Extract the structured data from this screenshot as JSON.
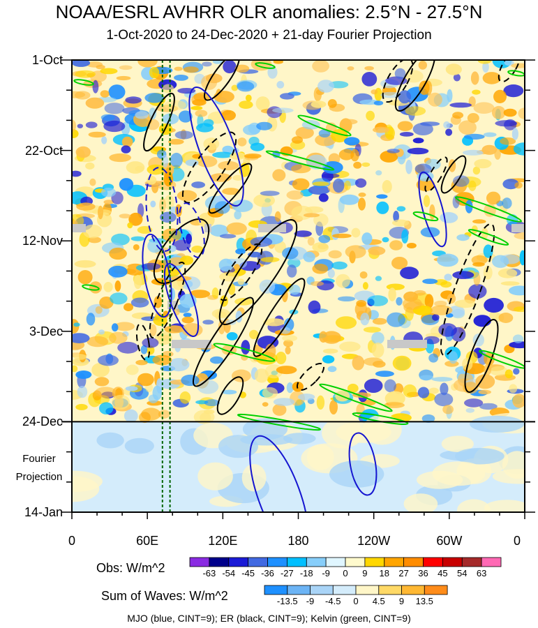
{
  "chart_data": {
    "type": "heatmap",
    "title": "NOAA/ESRL AVHRR OLR anomalies: 2.5°N - 27.5°N",
    "subtitle": "1-Oct-2020 to 24-Dec-2020 + 21-day Fourier Projection",
    "x_ticks": [
      "0",
      "60E",
      "120E",
      "180",
      "120W",
      "60W",
      "0"
    ],
    "x_range_degE": [
      0,
      360
    ],
    "y_ticks": [
      "1-Oct",
      "22-Oct",
      "12-Nov",
      "3-Dec",
      "24-Dec",
      "14-Jan"
    ],
    "y_range_days": [
      0,
      105
    ],
    "projection_label": [
      "Fourier",
      "Projection"
    ],
    "projection_start_day": 84,
    "obs_colorbar": {
      "title": "Obs: W/m^2",
      "levels": [
        "-63",
        "-54",
        "-45",
        "-36",
        "-27",
        "-18",
        "-9",
        "0",
        "9",
        "18",
        "27",
        "36",
        "45",
        "54",
        "63"
      ],
      "colors": [
        "#8a2be2",
        "#00008b",
        "#1a1ad6",
        "#4169e1",
        "#1e90ff",
        "#00bfff",
        "#87cefa",
        "#e0f6ff",
        "#fffacd",
        "#ffd700",
        "#ffa500",
        "#ff8c00",
        "#ff0000",
        "#c80000",
        "#a52a2a",
        "#ff69b4"
      ]
    },
    "waves_colorbar": {
      "title": "Sum of Waves: W/m^2",
      "levels": [
        "-13.5",
        "-9",
        "-4.5",
        "0",
        "4.5",
        "9",
        "13.5"
      ],
      "colors": [
        "#1e90ff",
        "#6cb4f5",
        "#a9d4f7",
        "#d4ecfb",
        "#fff6c8",
        "#ffd966",
        "#ffb833",
        "#ff8c1a"
      ]
    },
    "footer": "MJO (blue, CINT=9); ER (black, CINT=9); Kelvin (green, CINT=9)",
    "wave_contours": {
      "mjo_color": "#1515d0",
      "er_color": "#000000",
      "kelvin_color": "#00d000"
    },
    "reference_lines_lon": [
      72,
      78
    ],
    "reference_line_color": "#006400",
    "missing_data_color": "#c8c8c8"
  }
}
